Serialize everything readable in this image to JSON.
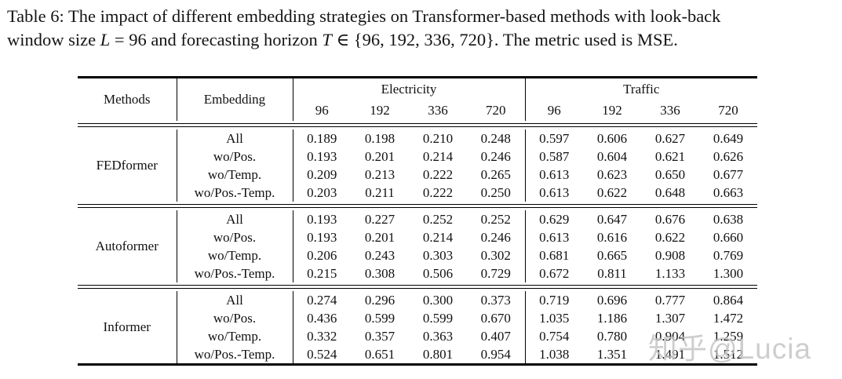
{
  "caption": {
    "line1": "Table 6: The impact of different embedding strategies on Transformer-based methods with look-back",
    "line2_part1": "window size ",
    "line2_var1": "L",
    "line2_part2": " = 96 and forecasting horizon ",
    "line2_var2": "T",
    "line2_part3": " ∈ {96, 192, 336, 720}. The metric used is MSE."
  },
  "table": {
    "col_headers": {
      "methods": "Methods",
      "embedding": "Embedding"
    },
    "groups": [
      {
        "label": "Electricity",
        "horizons": [
          "96",
          "192",
          "336",
          "720"
        ]
      },
      {
        "label": "Traffic",
        "horizons": [
          "96",
          "192",
          "336",
          "720"
        ]
      }
    ],
    "sections": [
      {
        "method": "FEDformer",
        "rows": [
          {
            "label": "All",
            "values": [
              "0.189",
              "0.198",
              "0.210",
              "0.248",
              "0.597",
              "0.606",
              "0.627",
              "0.649"
            ],
            "bold": [
              true,
              true,
              true,
              false,
              false,
              false,
              false,
              false
            ]
          },
          {
            "label": "wo/Pos.",
            "values": [
              "0.193",
              "0.201",
              "0.214",
              "0.246",
              "0.587",
              "0.604",
              "0.621",
              "0.626"
            ],
            "bold": [
              false,
              false,
              false,
              true,
              true,
              true,
              true,
              true
            ]
          },
          {
            "label": "wo/Temp.",
            "values": [
              "0.209",
              "0.213",
              "0.222",
              "0.265",
              "0.613",
              "0.623",
              "0.650",
              "0.677"
            ],
            "bold": [
              false,
              false,
              false,
              false,
              false,
              false,
              false,
              false
            ]
          },
          {
            "label": "wo/Pos.-Temp.",
            "values": [
              "0.203",
              "0.211",
              "0.222",
              "0.250",
              "0.613",
              "0.622",
              "0.648",
              "0.663"
            ],
            "bold": [
              false,
              false,
              false,
              false,
              false,
              false,
              false,
              false
            ]
          }
        ]
      },
      {
        "method": "Autoformer",
        "rows": [
          {
            "label": "All",
            "values": [
              "0.193",
              "0.227",
              "0.252",
              "0.252",
              "0.629",
              "0.647",
              "0.676",
              "0.638"
            ],
            "bold": [
              true,
              false,
              false,
              false,
              false,
              false,
              false,
              true
            ]
          },
          {
            "label": "wo/Pos.",
            "values": [
              "0.193",
              "0.201",
              "0.214",
              "0.246",
              "0.613",
              "0.616",
              "0.622",
              "0.660"
            ],
            "bold": [
              true,
              true,
              true,
              true,
              true,
              true,
              true,
              false
            ]
          },
          {
            "label": "wo/Temp.",
            "values": [
              "0.206",
              "0.243",
              "0.303",
              "0.302",
              "0.681",
              "0.665",
              "0.908",
              "0.769"
            ],
            "bold": [
              false,
              false,
              false,
              false,
              false,
              false,
              false,
              false
            ]
          },
          {
            "label": "wo/Pos.-Temp.",
            "values": [
              "0.215",
              "0.308",
              "0.506",
              "0.729",
              "0.672",
              "0.811",
              "1.133",
              "1.300"
            ],
            "bold": [
              false,
              false,
              false,
              false,
              false,
              false,
              false,
              false
            ]
          }
        ]
      },
      {
        "method": "Informer",
        "rows": [
          {
            "label": "All",
            "values": [
              "0.274",
              "0.296",
              "0.300",
              "0.373",
              "0.719",
              "0.696",
              "0.777",
              "0.864"
            ],
            "bold": [
              true,
              true,
              true,
              true,
              true,
              true,
              true,
              true
            ]
          },
          {
            "label": "wo/Pos.",
            "values": [
              "0.436",
              "0.599",
              "0.599",
              "0.670",
              "1.035",
              "1.186",
              "1.307",
              "1.472"
            ],
            "bold": [
              false,
              false,
              false,
              false,
              false,
              false,
              false,
              false
            ]
          },
          {
            "label": "wo/Temp.",
            "values": [
              "0.332",
              "0.357",
              "0.363",
              "0.407",
              "0.754",
              "0.780",
              "0.904",
              "1.259"
            ],
            "bold": [
              false,
              false,
              false,
              false,
              false,
              false,
              false,
              false
            ]
          },
          {
            "label": "wo/Pos.-Temp.",
            "values": [
              "0.524",
              "0.651",
              "0.801",
              "0.954",
              "1.038",
              "1.351",
              "1.491",
              "1.512"
            ],
            "bold": [
              false,
              false,
              false,
              false,
              false,
              false,
              false,
              false
            ]
          }
        ]
      }
    ]
  },
  "watermark": {
    "text": "知乎@Lucia",
    "color": "#c2c2c2"
  }
}
